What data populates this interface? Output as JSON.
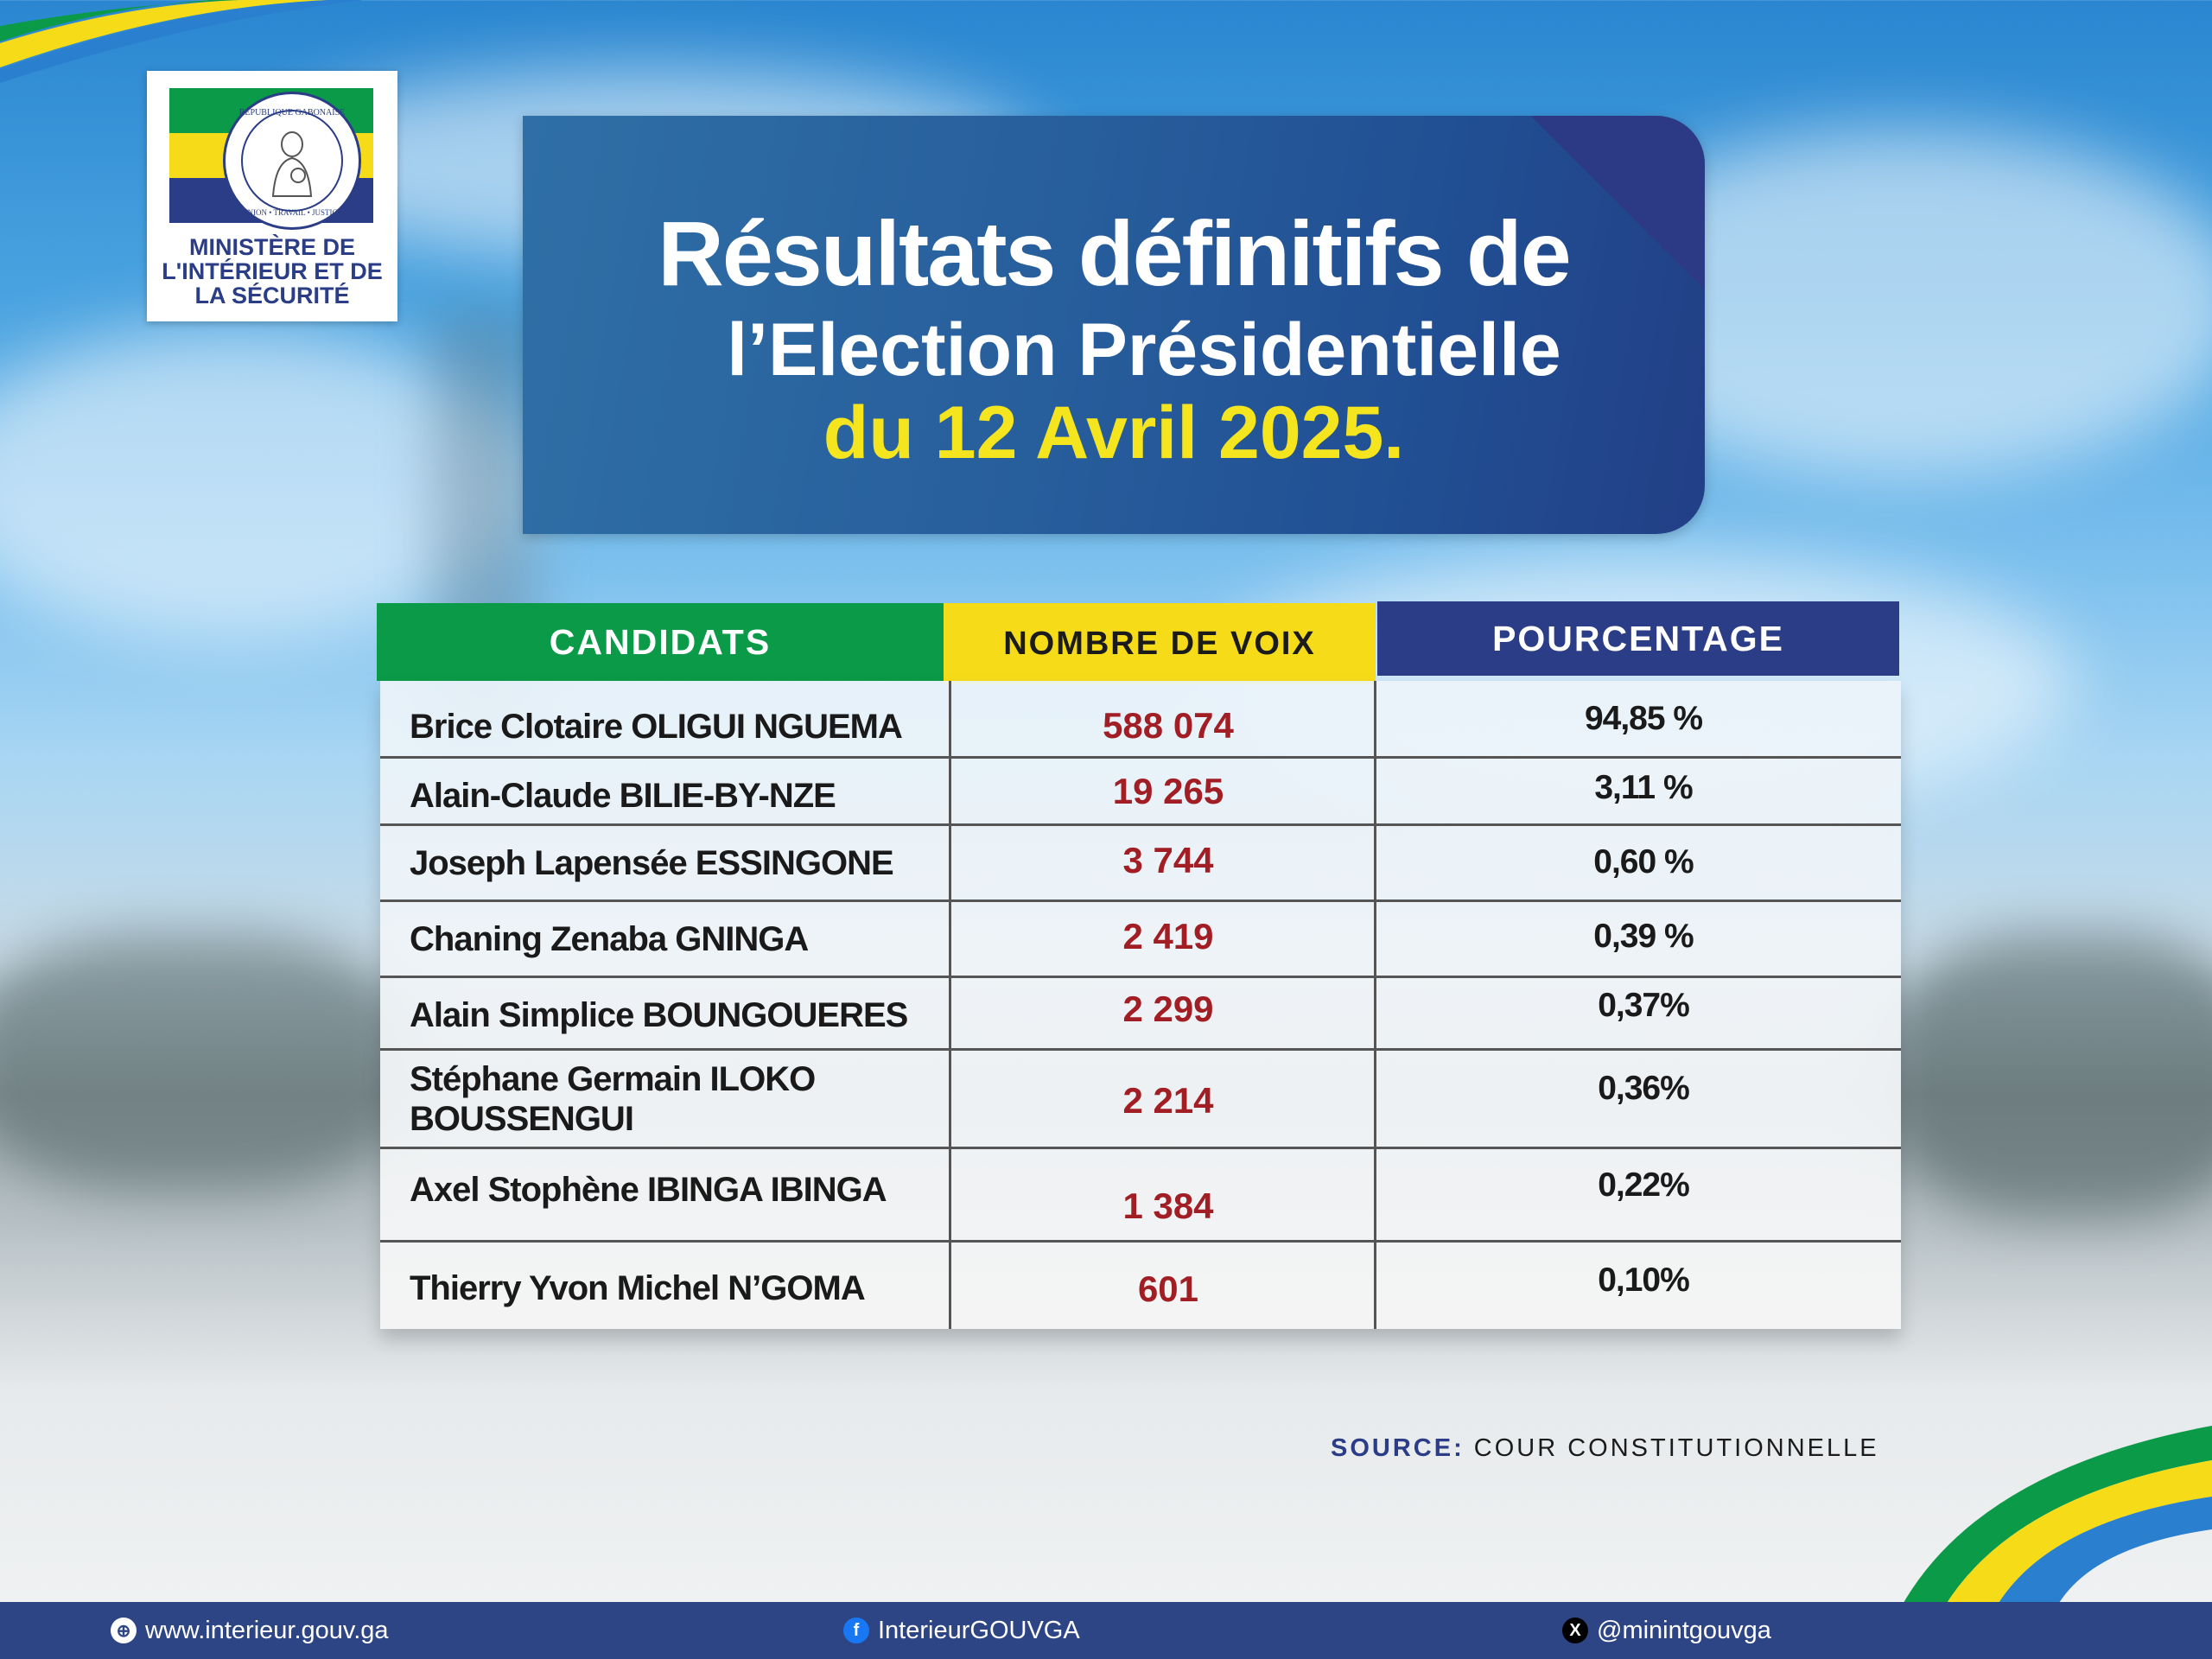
{
  "logo": {
    "ministry_line1": "MINISTÈRE DE",
    "ministry_line2": "L'INTÉRIEUR ET DE",
    "ministry_line3": "LA SÉCURITÉ",
    "seal_top": "RÉPUBLIQUE GABONAISE",
    "seal_bottom": "UNION • TRAVAIL • JUSTICE"
  },
  "title": {
    "line1": "Résultats définitifs de",
    "line2": "l’Election Présidentielle",
    "line3": "du 12 Avril 2025."
  },
  "table": {
    "headers": [
      "CANDIDATS",
      "NOMBRE DE VOIX",
      "POURCENTAGE"
    ],
    "rows": [
      {
        "name": "Brice Clotaire OLIGUI NGUEMA",
        "votes": "588 074",
        "percent": "94,85 %"
      },
      {
        "name": "Alain-Claude BILIE-BY-NZE",
        "votes": "19 265",
        "percent": "3,11 %"
      },
      {
        "name": "Joseph Lapensée ESSINGONE",
        "votes": "3 744",
        "percent": "0,60 %"
      },
      {
        "name": "Chaning Zenaba GNINGA",
        "votes": "2 419",
        "percent": "0,39 %"
      },
      {
        "name": "Alain Simplice BOUNGOUERES",
        "votes": "2 299",
        "percent": "0,37%"
      },
      {
        "name": "Stéphane Germain ILOKO BOUSSENGUI",
        "votes": "2 214",
        "percent": "0,36%"
      },
      {
        "name": "Axel Stophène IBINGA IBINGA",
        "votes": "1 384",
        "percent": "0,22%"
      },
      {
        "name": "Thierry Yvon Michel N’GOMA",
        "votes": "601",
        "percent": "0,10%"
      }
    ]
  },
  "source": {
    "label": "SOURCE:",
    "value": "COUR CONSTITUTIONNELLE"
  },
  "footer": {
    "website": "www.interieur.gouv.ga",
    "facebook": "InterieurGOUVGA",
    "x": "@minintgouvga"
  },
  "colors": {
    "green": "#0b9a48",
    "yellow": "#f6dc18",
    "blue": "#2a3d86",
    "votes_red": "#a21e25"
  }
}
